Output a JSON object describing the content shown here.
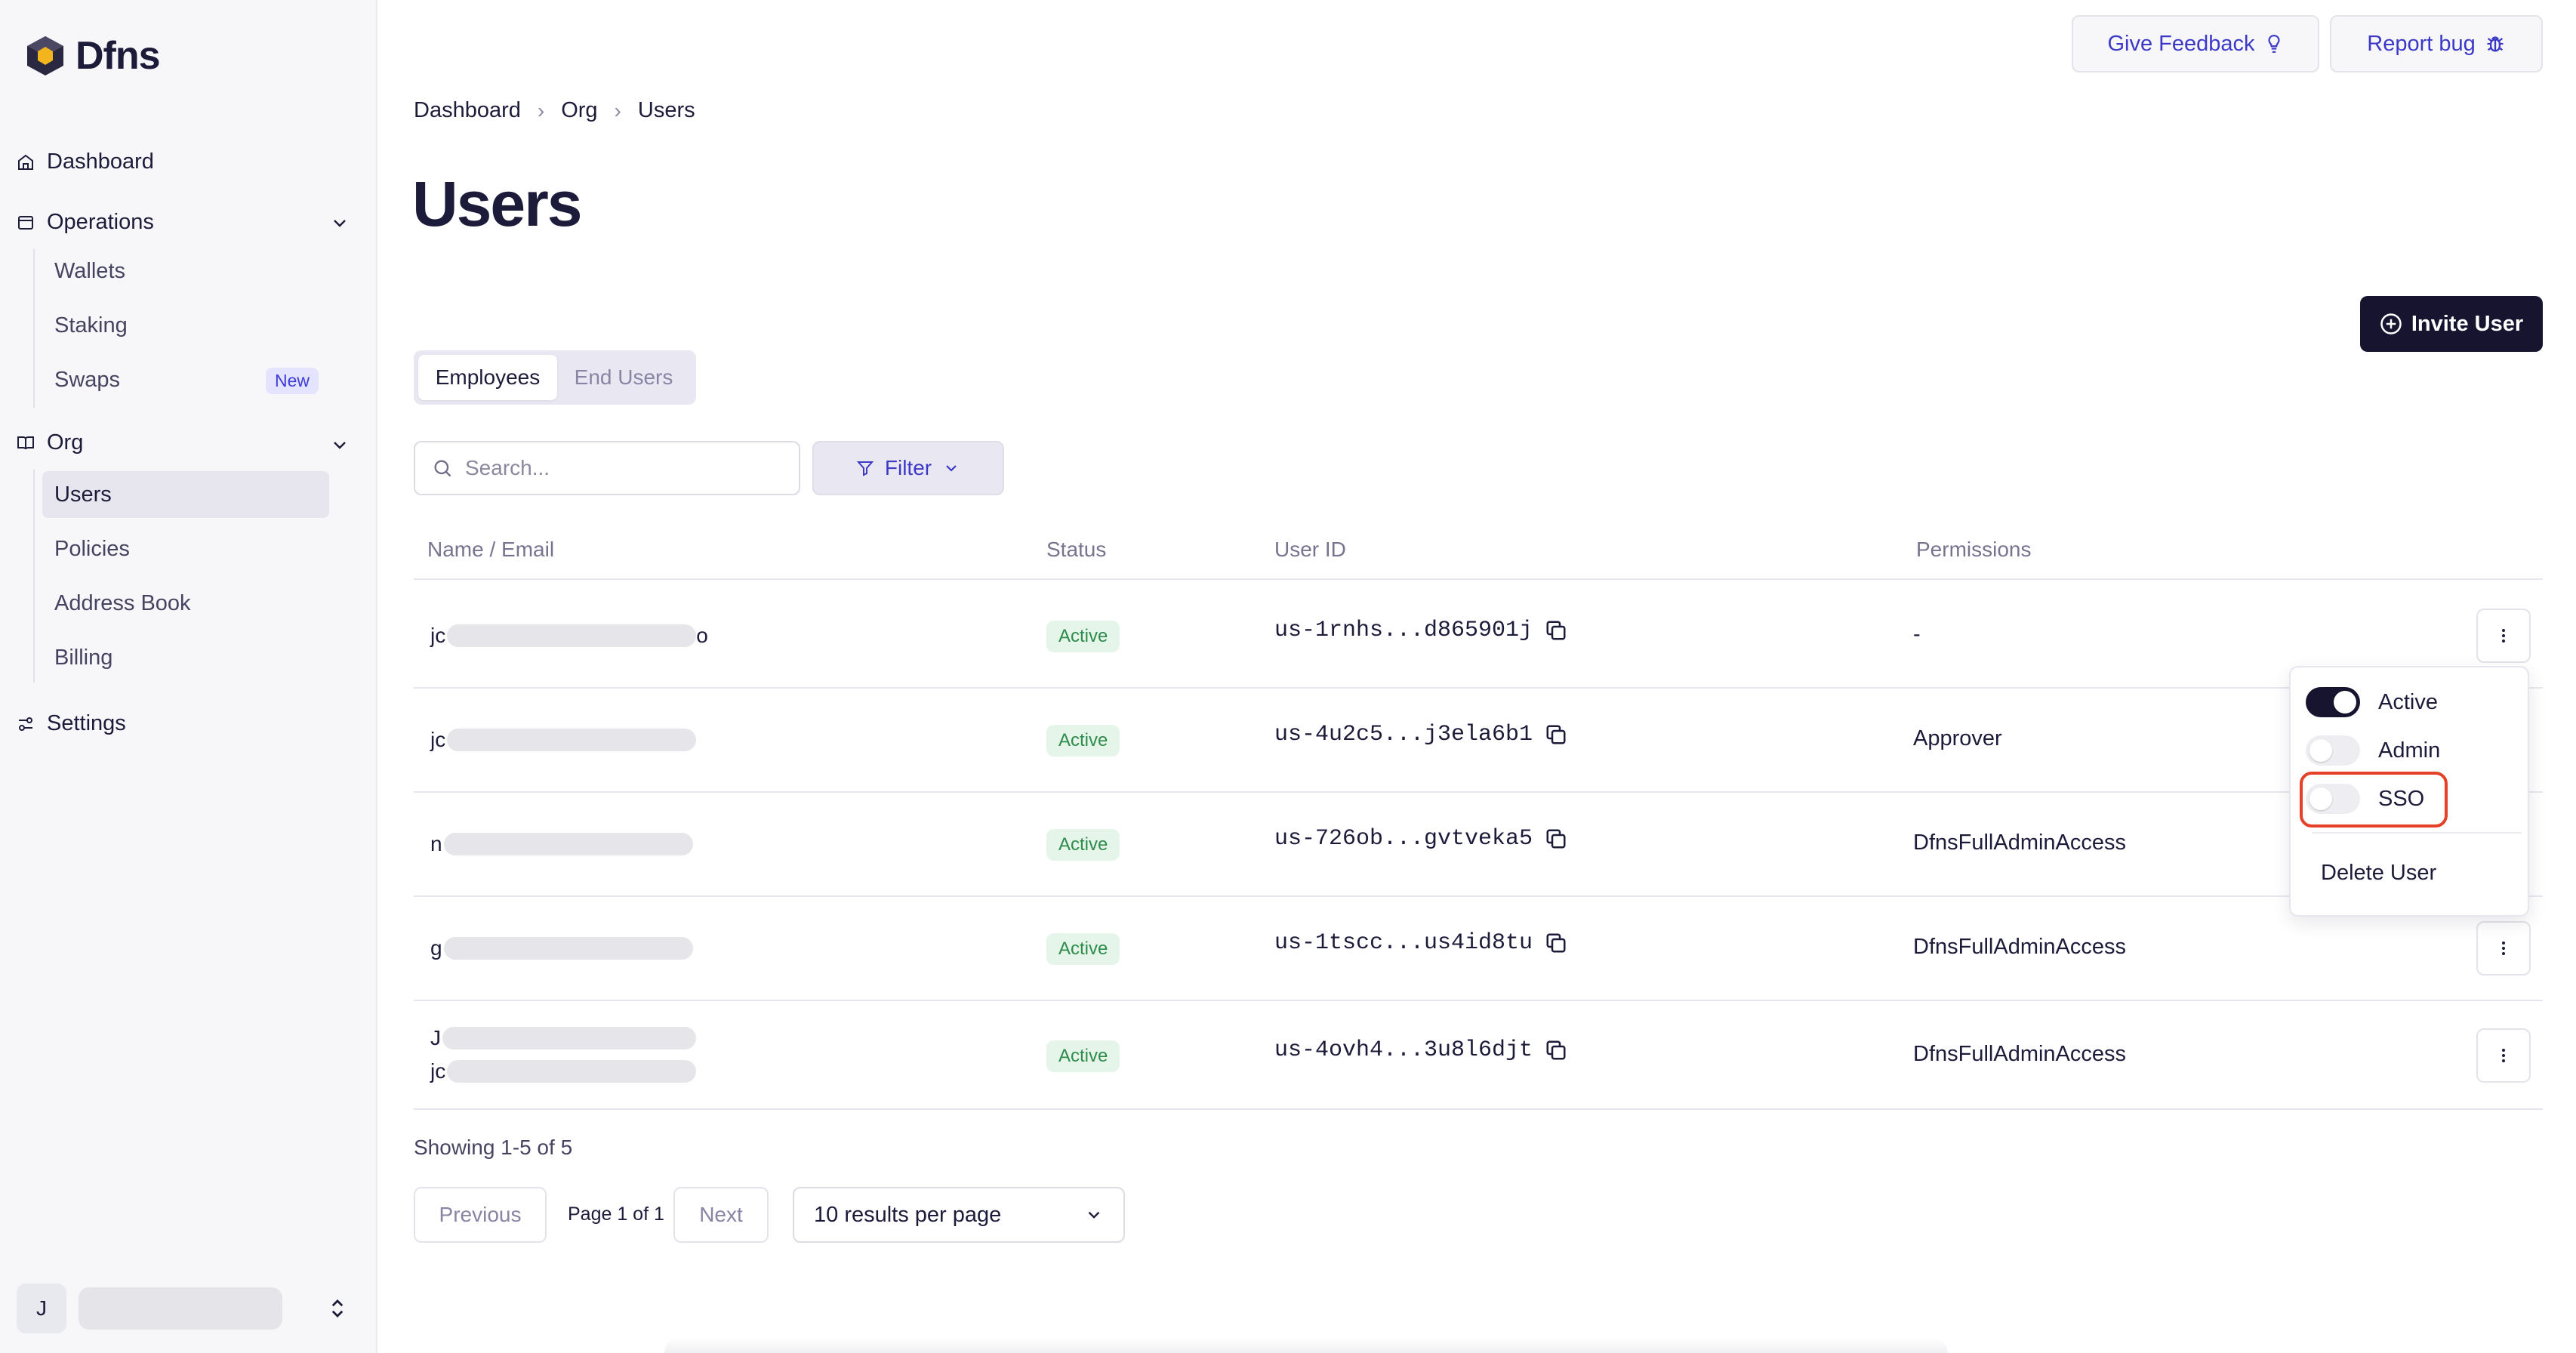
{
  "app": {
    "name": "Dfns"
  },
  "sidebar": {
    "dashboard": "Dashboard",
    "operations": {
      "label": "Operations",
      "items": [
        "Wallets",
        "Staking",
        "Swaps"
      ],
      "swaps_badge": "New"
    },
    "org": {
      "label": "Org",
      "items": [
        "Users",
        "Policies",
        "Address Book",
        "Billing"
      ]
    },
    "settings": "Settings",
    "account": {
      "initial": "J"
    }
  },
  "header": {
    "feedback_label": "Give Feedback",
    "bug_label": "Report bug"
  },
  "breadcrumb": [
    "Dashboard",
    "Org",
    "Users"
  ],
  "page": {
    "title": "Users",
    "invite_label": "Invite User"
  },
  "tabs": [
    "Employees",
    "End Users"
  ],
  "search": {
    "placeholder": "Search..."
  },
  "filter": {
    "label": "Filter"
  },
  "table": {
    "columns": [
      "Name / Email",
      "Status",
      "User ID",
      "Permissions"
    ],
    "rows": [
      {
        "name_prefix": "jc",
        "name_suffix": "o",
        "status": "Active",
        "user_id": "us-1rnhs...d865901j",
        "permissions": "-"
      },
      {
        "name_prefix": "jc",
        "status": "Active",
        "user_id": "us-4u2c5...j3ela6b1",
        "permissions": "Approver"
      },
      {
        "name_prefix": "n",
        "status": "Active",
        "user_id": "us-726ob...gvtveka5",
        "permissions": "DfnsFullAdminAccess"
      },
      {
        "name_prefix": "g",
        "status": "Active",
        "user_id": "us-1tscc...us4id8tu",
        "permissions": "DfnsFullAdminAccess"
      },
      {
        "name_prefix": "J",
        "email_prefix": "jc",
        "status": "Active",
        "user_id": "us-4ovh4...3u8l6djt",
        "permissions": "DfnsFullAdminAccess"
      }
    ]
  },
  "row_menu": {
    "toggles": [
      {
        "label": "Active",
        "state": "on"
      },
      {
        "label": "Admin",
        "state": "off"
      },
      {
        "label": "SSO",
        "state": "off"
      }
    ],
    "delete_label": "Delete User"
  },
  "pagination": {
    "showing": "Showing 1-5 of 5",
    "previous": "Previous",
    "page_info": "Page 1 of 1",
    "next": "Next",
    "per_page": "10 results per page"
  },
  "colors": {
    "brand_dark": "#16142f",
    "accent": "#3c39c6",
    "status_green": "#2d8c4a",
    "highlight": "#e44128"
  }
}
